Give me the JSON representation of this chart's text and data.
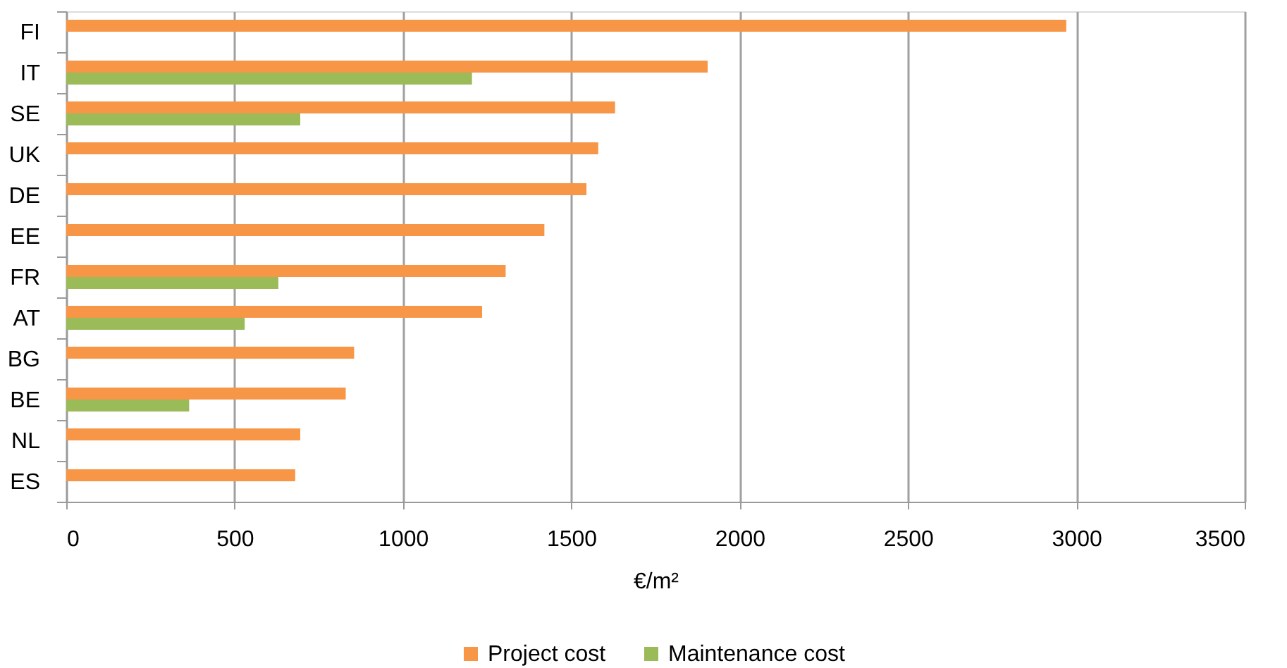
{
  "chart_data": {
    "type": "bar",
    "orientation": "horizontal",
    "categories": [
      "FI",
      "IT",
      "SE",
      "UK",
      "DE",
      "EE",
      "FR",
      "AT",
      "BG",
      "BE",
      "NL",
      "ES"
    ],
    "series": [
      {
        "name": "Project cost",
        "color": "#f79646",
        "values": [
          2970,
          1905,
          1630,
          1580,
          1545,
          1420,
          1305,
          1235,
          855,
          830,
          695,
          680
        ]
      },
      {
        "name": "Maintenance cost",
        "color": "#9bbb59",
        "values": [
          null,
          1205,
          695,
          null,
          null,
          null,
          630,
          530,
          null,
          365,
          null,
          null
        ]
      }
    ],
    "xlabel": "€/m²",
    "xlim": [
      0,
      3500
    ],
    "xticks": [
      0,
      500,
      1000,
      1500,
      2000,
      2500,
      3000,
      3500
    ],
    "grid": "x",
    "legend": "bottom"
  }
}
